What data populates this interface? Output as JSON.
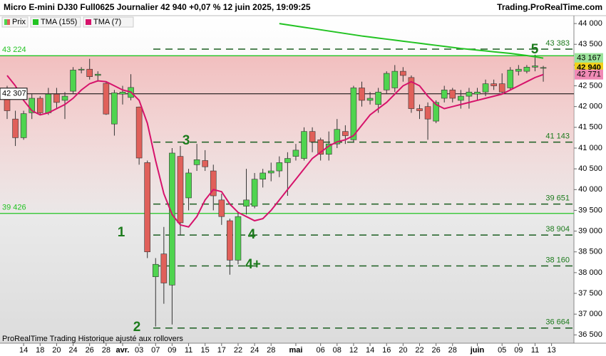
{
  "chart_data": {
    "type": "candlestick",
    "title": "Micro E-mini DJ30 Full0625 Journalier 42 940 +0,07 % 12 juin 2025, 19:09:25",
    "source": "Trading.ProRealTime.com",
    "footer": "ProRealTime Trading  Historique ajusté aux rollovers",
    "price_name": "Prix",
    "up_color": "#4fd44f",
    "down_color": "#e0605a",
    "x": [
      "2025-03-12",
      "2025-03-13",
      "2025-03-14",
      "2025-03-17",
      "2025-03-18",
      "2025-03-19",
      "2025-03-20",
      "2025-03-21",
      "2025-03-24",
      "2025-03-25",
      "2025-03-26",
      "2025-03-27",
      "2025-03-28",
      "2025-03-31",
      "2025-04-01",
      "2025-04-02",
      "2025-04-03",
      "2025-04-04",
      "2025-04-07",
      "2025-04-08",
      "2025-04-09",
      "2025-04-10",
      "2025-04-11",
      "2025-04-14",
      "2025-04-15",
      "2025-04-16",
      "2025-04-17",
      "2025-04-21",
      "2025-04-22",
      "2025-04-23",
      "2025-04-24",
      "2025-04-25",
      "2025-04-28",
      "2025-04-29",
      "2025-04-30",
      "2025-05-01",
      "2025-05-02",
      "2025-05-05",
      "2025-05-06",
      "2025-05-07",
      "2025-05-08",
      "2025-05-09",
      "2025-05-12",
      "2025-05-13",
      "2025-05-14",
      "2025-05-15",
      "2025-05-16",
      "2025-05-19",
      "2025-05-20",
      "2025-05-21",
      "2025-05-22",
      "2025-05-23",
      "2025-05-26",
      "2025-05-27",
      "2025-05-28",
      "2025-05-29",
      "2025-05-30",
      "2025-06-02",
      "2025-06-03",
      "2025-06-04",
      "2025-06-05",
      "2025-06-06",
      "2025-06-09",
      "2025-06-10",
      "2025-06-11",
      "2025-06-12",
      "2025-06-13"
    ],
    "open": [
      42300,
      41700,
      41250,
      41850,
      42200,
      41850,
      42300,
      42150,
      42370,
      42880,
      42900,
      42750,
      42560,
      41580,
      42300,
      42220,
      41990,
      40650,
      37900,
      38450,
      37700,
      40800,
      39800,
      40600,
      40700,
      40450,
      39750,
      39250,
      38300,
      39600,
      39600,
      40250,
      40400,
      40450,
      40650,
      40800,
      40750,
      41400,
      41200,
      40850,
      41100,
      41400,
      41200,
      42450,
      42150,
      42050,
      42400,
      42450,
      42850,
      42700,
      41950,
      42000,
      41650,
      42200,
      42400,
      42150,
      42250,
      42300,
      42350,
      42550,
      42550,
      42450,
      42850,
      42850,
      42950,
      42930,
      null
    ],
    "high": [
      42500,
      41900,
      41900,
      42300,
      42250,
      42450,
      42450,
      42350,
      42950,
      42950,
      43150,
      42850,
      42600,
      42400,
      42500,
      42780,
      42000,
      40700,
      38350,
      39100,
      41000,
      41050,
      40500,
      41100,
      40950,
      40600,
      39900,
      39300,
      39450,
      40500,
      40400,
      40500,
      40650,
      40800,
      40900,
      41100,
      41500,
      41500,
      41250,
      41400,
      41700,
      41550,
      42500,
      42600,
      42350,
      42450,
      42850,
      43000,
      42950,
      42750,
      42050,
      42100,
      42150,
      42500,
      42450,
      42400,
      42450,
      42450,
      42650,
      42650,
      42800,
      42950,
      43000,
      43000,
      43250,
      42980,
      null
    ],
    "low": [
      41700,
      41050,
      41200,
      41700,
      41800,
      41800,
      41950,
      41700,
      42300,
      42800,
      42650,
      42600,
      41800,
      41300,
      42050,
      42150,
      40600,
      38350,
      36700,
      37250,
      36750,
      38900,
      39500,
      40450,
      40450,
      39500,
      39150,
      37950,
      38200,
      39400,
      39550,
      40050,
      40200,
      40300,
      39850,
      40700,
      40700,
      40900,
      40700,
      40700,
      41000,
      41100,
      41150,
      42000,
      42050,
      41850,
      42300,
      42350,
      42600,
      41850,
      41700,
      41200,
      41600,
      42100,
      42100,
      41950,
      41950,
      42150,
      42250,
      42400,
      42300,
      42400,
      42750,
      42800,
      42850,
      42600,
      null
    ],
    "close": [
      41900,
      41250,
      41830,
      42200,
      41850,
      42300,
      42100,
      42250,
      42880,
      42900,
      42720,
      42780,
      41820,
      42330,
      42350,
      42460,
      40760,
      38500,
      38200,
      37750,
      40880,
      39200,
      40400,
      40720,
      40550,
      39850,
      39350,
      38300,
      39350,
      39750,
      40250,
      40400,
      40450,
      40650,
      40750,
      40950,
      41400,
      41150,
      40850,
      41100,
      41450,
      41300,
      42450,
      42150,
      42200,
      42350,
      42800,
      42850,
      42750,
      41950,
      41900,
      41700,
      42100,
      42400,
      42200,
      42250,
      42350,
      42350,
      42550,
      42500,
      42350,
      42880,
      42900,
      42950,
      42980,
      42940,
      null
    ],
    "series": [
      {
        "name": "TMA (155)",
        "color": "#22c322",
        "values": [
          null,
          null,
          null,
          null,
          null,
          null,
          null,
          null,
          null,
          null,
          null,
          null,
          null,
          null,
          null,
          null,
          null,
          null,
          null,
          null,
          null,
          null,
          null,
          null,
          null,
          null,
          null,
          null,
          null,
          null,
          null,
          null,
          null,
          44000,
          43970,
          43940,
          43910,
          43880,
          43850,
          43820,
          43790,
          43760,
          43730,
          43700,
          43675,
          43650,
          43625,
          43600,
          43575,
          43550,
          43525,
          43500,
          43475,
          43450,
          43425,
          43400,
          43380,
          43360,
          43340,
          43320,
          43300,
          43280,
          43255,
          43230,
          43200,
          43167,
          null
        ]
      },
      {
        "name": "TMA (7)",
        "color": "#d6136b",
        "values": [
          42750,
          42500,
          42150,
          41900,
          41800,
          41850,
          41950,
          42050,
          42200,
          42400,
          42550,
          42620,
          42600,
          42500,
          42400,
          42350,
          42150,
          41600,
          40700,
          39900,
          39400,
          39150,
          39100,
          39350,
          39750,
          40000,
          39950,
          39650,
          39450,
          39350,
          39250,
          39300,
          39500,
          39750,
          40000,
          40250,
          40500,
          40750,
          40900,
          41050,
          41150,
          41200,
          41300,
          41550,
          41800,
          41950,
          42100,
          42300,
          42500,
          42600,
          42500,
          42250,
          42050,
          41950,
          42000,
          42050,
          42100,
          42150,
          42200,
          42250,
          42300,
          42400,
          42500,
          42600,
          42700,
          42771,
          null
        ]
      }
    ],
    "ylim": [
      36300,
      44190
    ],
    "yticks": [
      {
        "value": 44000,
        "label": "44 000"
      },
      {
        "value": 43500,
        "label": "43 500"
      },
      {
        "value": 43000,
        "label": "43 000"
      },
      {
        "value": 42500,
        "label": "42 500"
      },
      {
        "value": 42000,
        "label": "42 000"
      },
      {
        "value": 41500,
        "label": "41 500"
      },
      {
        "value": 41000,
        "label": "41 000"
      },
      {
        "value": 40500,
        "label": "40 500"
      },
      {
        "value": 40000,
        "label": "40 000"
      },
      {
        "value": 39500,
        "label": "39 500"
      },
      {
        "value": 39000,
        "label": "39 000"
      },
      {
        "value": 38500,
        "label": "38 500"
      },
      {
        "value": 38000,
        "label": "38 000"
      },
      {
        "value": 37500,
        "label": "37 500"
      },
      {
        "value": 37000,
        "label": "37 000"
      },
      {
        "value": 36500,
        "label": "36 500"
      }
    ],
    "xticks": [
      {
        "value": "2025-03-14",
        "label": "14"
      },
      {
        "value": "2025-03-18",
        "label": "18"
      },
      {
        "value": "2025-03-20",
        "label": "20"
      },
      {
        "value": "2025-03-24",
        "label": "24"
      },
      {
        "value": "2025-03-26",
        "label": "26"
      },
      {
        "value": "2025-03-28",
        "label": "28"
      },
      {
        "value": "2025-04-01",
        "label": "avr."
      },
      {
        "value": "2025-04-03",
        "label": "03"
      },
      {
        "value": "2025-04-07",
        "label": "07"
      },
      {
        "value": "2025-04-09",
        "label": "09"
      },
      {
        "value": "2025-04-11",
        "label": "11"
      },
      {
        "value": "2025-04-15",
        "label": "15"
      },
      {
        "value": "2025-04-17",
        "label": "17"
      },
      {
        "value": "2025-04-22",
        "label": "22"
      },
      {
        "value": "2025-04-24",
        "label": "24"
      },
      {
        "value": "2025-04-28",
        "label": "28"
      },
      {
        "value": "2025-05-01",
        "label": "mai"
      },
      {
        "value": "2025-05-06",
        "label": "06"
      },
      {
        "value": "2025-05-08",
        "label": "08"
      },
      {
        "value": "2025-05-12",
        "label": "12"
      },
      {
        "value": "2025-05-14",
        "label": "14"
      },
      {
        "value": "2025-05-16",
        "label": "16"
      },
      {
        "value": "2025-05-20",
        "label": "20"
      },
      {
        "value": "2025-05-22",
        "label": "22"
      },
      {
        "value": "2025-05-26",
        "label": "26"
      },
      {
        "value": "2025-05-28",
        "label": "28"
      },
      {
        "value": "2025-06-02",
        "label": "juin"
      },
      {
        "value": "2025-06-05",
        "label": "05"
      },
      {
        "value": "2025-06-09",
        "label": "09"
      },
      {
        "value": "2025-06-11",
        "label": "11"
      },
      {
        "value": "2025-06-13",
        "label": "13"
      }
    ],
    "solid_levels": [
      {
        "value": 43224,
        "label": "43 224",
        "color": "#22c322"
      },
      {
        "value": 42307,
        "label": "42 307",
        "color": "#000000"
      },
      {
        "value": 39426,
        "label": "39 426",
        "color": "#22c322"
      }
    ],
    "dashed_levels": [
      {
        "value": 43383,
        "label": "43 383"
      },
      {
        "value": 41143,
        "label": "41 143"
      },
      {
        "value": 39651,
        "label": "39 651"
      },
      {
        "value": 38904,
        "label": "38 904"
      },
      {
        "value": 38160,
        "label": "38 160"
      },
      {
        "value": 36664,
        "label": "36 664"
      }
    ],
    "price_tags": [
      {
        "value": 43167,
        "label": "43 167",
        "color": "#9be39b"
      },
      {
        "value": 42940,
        "label": "42 940",
        "color": "#f2d21b"
      },
      {
        "value": 42771,
        "label": "42 771",
        "color": "#f08ab5"
      }
    ],
    "annotations": [
      "1",
      "2",
      "3",
      "4",
      "4+",
      "5"
    ]
  }
}
